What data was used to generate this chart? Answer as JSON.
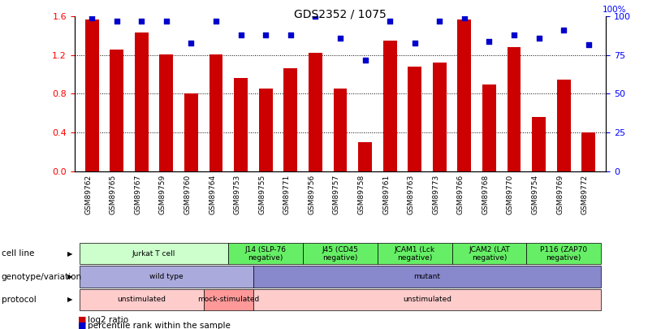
{
  "title": "GDS2352 / 1075",
  "samples": [
    "GSM89762",
    "GSM89765",
    "GSM89767",
    "GSM89759",
    "GSM89760",
    "GSM89764",
    "GSM89753",
    "GSM89755",
    "GSM89771",
    "GSM89756",
    "GSM89757",
    "GSM89758",
    "GSM89761",
    "GSM89763",
    "GSM89773",
    "GSM89766",
    "GSM89768",
    "GSM89770",
    "GSM89754",
    "GSM89769",
    "GSM89772"
  ],
  "log2_ratio": [
    1.57,
    1.26,
    1.43,
    1.21,
    0.8,
    1.21,
    0.96,
    0.85,
    1.06,
    1.22,
    0.85,
    0.3,
    1.35,
    1.08,
    1.12,
    1.57,
    0.9,
    1.28,
    0.56,
    0.95,
    0.4
  ],
  "percentile": [
    99,
    97,
    97,
    97,
    83,
    97,
    88,
    88,
    88,
    100,
    86,
    72,
    97,
    83,
    97,
    99,
    84,
    88,
    86,
    91,
    82
  ],
  "bar_color": "#cc0000",
  "dot_color": "#0000cc",
  "ylim_left": [
    0,
    1.6
  ],
  "ylim_right": [
    0,
    100
  ],
  "yticks_left": [
    0,
    0.4,
    0.8,
    1.2,
    1.6
  ],
  "yticks_right": [
    0,
    25,
    50,
    75,
    100
  ],
  "cell_line_groups": [
    {
      "label": "Jurkat T cell",
      "start": 0,
      "end": 6,
      "color": "#ccffcc"
    },
    {
      "label": "J14 (SLP-76\nnegative)",
      "start": 6,
      "end": 9,
      "color": "#66ee66"
    },
    {
      "label": "J45 (CD45\nnegative)",
      "start": 9,
      "end": 12,
      "color": "#66ee66"
    },
    {
      "label": "JCAM1 (Lck\nnegative)",
      "start": 12,
      "end": 15,
      "color": "#66ee66"
    },
    {
      "label": "JCAM2 (LAT\nnegative)",
      "start": 15,
      "end": 18,
      "color": "#66ee66"
    },
    {
      "label": "P116 (ZAP70\nnegative)",
      "start": 18,
      "end": 21,
      "color": "#66ee66"
    }
  ],
  "genotype_groups": [
    {
      "label": "wild type",
      "start": 0,
      "end": 7,
      "color": "#aaaadd"
    },
    {
      "label": "mutant",
      "start": 7,
      "end": 21,
      "color": "#8888cc"
    }
  ],
  "protocol_groups": [
    {
      "label": "unstimulated",
      "start": 0,
      "end": 5,
      "color": "#ffcccc"
    },
    {
      "label": "mock-stimulated",
      "start": 5,
      "end": 7,
      "color": "#ff9999"
    },
    {
      "label": "unstimulated",
      "start": 7,
      "end": 21,
      "color": "#ffcccc"
    }
  ],
  "row_labels": [
    "cell line",
    "genotype/variation",
    "protocol"
  ],
  "legend_items": [
    {
      "color": "#cc0000",
      "label": "log2 ratio"
    },
    {
      "color": "#0000cc",
      "label": "percentile rank within the sample"
    }
  ]
}
